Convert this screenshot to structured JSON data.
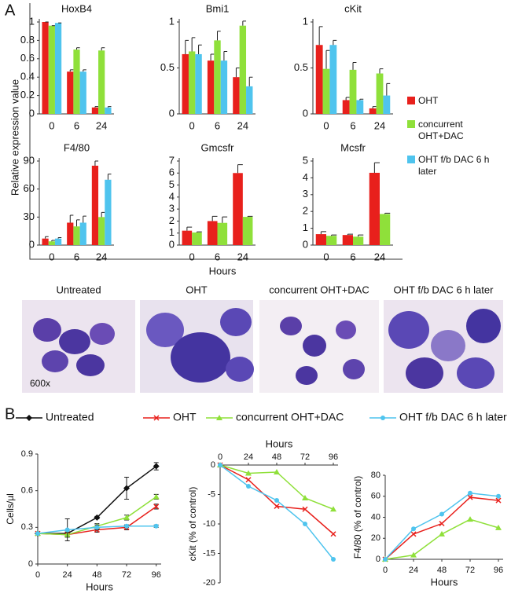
{
  "panel_a": {
    "label": "A",
    "y_label": "Relative expression value",
    "x_label": "Hours"
  },
  "micrographs": {
    "labels": [
      "Untreated",
      "OHT",
      "concurrent OHT+DAC",
      "OHT f/b DAC 6 h later"
    ],
    "magnification": "600x"
  },
  "panel_b": {
    "label": "B"
  },
  "chart_data": [
    {
      "type": "bar",
      "title": "HoxB4",
      "categories": [
        "0",
        "6",
        "24"
      ],
      "ylim": [
        0,
        1
      ],
      "yticks": [
        0,
        0.2,
        0.4,
        0.6,
        0.8,
        1
      ],
      "series": [
        {
          "name": "OHT",
          "color": "#e8201c",
          "values": [
            1.0,
            0.46,
            0.07
          ],
          "errors": [
            0,
            0.02,
            0.01
          ]
        },
        {
          "name": "concurrent OHT+DAC",
          "color": "#8fe03a",
          "values": [
            0.96,
            0.7,
            0.69
          ],
          "errors": [
            0,
            0.02,
            0.03
          ]
        },
        {
          "name": "OHT f/b DAC 6 h later",
          "color": "#4fc4ee",
          "values": [
            0.99,
            0.46,
            0.07
          ],
          "errors": [
            0,
            0.02,
            0.01
          ]
        }
      ]
    },
    {
      "type": "bar",
      "title": "Bmi1",
      "categories": [
        "0",
        "6",
        "24"
      ],
      "ylim": [
        0,
        1
      ],
      "yticks": [
        0,
        0.5,
        1
      ],
      "series": [
        {
          "color": "#e8201c",
          "values": [
            0.65,
            0.58,
            0.4
          ],
          "errors": [
            0.15,
            0.07,
            0.1
          ]
        },
        {
          "color": "#8fe03a",
          "values": [
            0.68,
            0.8,
            0.96
          ],
          "errors": [
            0.15,
            0.1,
            0.05
          ]
        },
        {
          "color": "#4fc4ee",
          "values": [
            0.65,
            0.58,
            0.3
          ],
          "errors": [
            0.1,
            0.1,
            0.1
          ]
        }
      ]
    },
    {
      "type": "bar",
      "title": "cKit",
      "categories": [
        "0",
        "6",
        "24"
      ],
      "ylim": [
        0,
        1
      ],
      "yticks": [
        0,
        0.5,
        1
      ],
      "series": [
        {
          "color": "#e8201c",
          "values": [
            0.75,
            0.15,
            0.06
          ],
          "errors": [
            0.2,
            0.03,
            0.02
          ]
        },
        {
          "color": "#8fe03a",
          "values": [
            0.49,
            0.48,
            0.44
          ],
          "errors": [
            0.2,
            0.08,
            0.05
          ]
        },
        {
          "color": "#4fc4ee",
          "values": [
            0.75,
            0.15,
            0.2
          ],
          "errors": [
            0.05,
            0.01,
            0.13
          ]
        }
      ]
    },
    {
      "type": "bar",
      "title": "F4/80",
      "categories": [
        "0",
        "6",
        "24"
      ],
      "ylim": [
        0,
        90
      ],
      "yticks": [
        0,
        30,
        60,
        90
      ],
      "series": [
        {
          "color": "#e8201c",
          "values": [
            7,
            24,
            85
          ],
          "errors": [
            2,
            8,
            5
          ]
        },
        {
          "color": "#8fe03a",
          "values": [
            4,
            20,
            30
          ],
          "errors": [
            1,
            7,
            5
          ]
        },
        {
          "color": "#4fc4ee",
          "values": [
            7,
            24,
            70
          ],
          "errors": [
            1,
            7,
            6
          ]
        }
      ]
    },
    {
      "type": "bar",
      "title": "Gmcsfr",
      "categories": [
        "0",
        "6",
        "24"
      ],
      "ylim": [
        0,
        7
      ],
      "yticks": [
        0,
        1,
        2,
        3,
        4,
        5,
        6,
        7
      ],
      "series": [
        {
          "color": "#e8201c",
          "values": [
            1.2,
            2.0,
            6.0
          ],
          "errors": [
            0.3,
            0.4,
            0.7
          ]
        },
        {
          "color": "#8fe03a",
          "values": [
            1.05,
            1.85,
            2.35
          ],
          "errors": [
            0.05,
            0.5,
            0.05
          ]
        }
      ]
    },
    {
      "type": "bar",
      "title": "Mcsfr",
      "categories": [
        "0",
        "6",
        "24"
      ],
      "ylim": [
        0,
        5
      ],
      "yticks": [
        0,
        1,
        2,
        3,
        4,
        5
      ],
      "series": [
        {
          "color": "#e8201c",
          "values": [
            0.65,
            0.6,
            4.3
          ],
          "errors": [
            0.15,
            0.05,
            0.6
          ]
        },
        {
          "color": "#8fe03a",
          "values": [
            0.55,
            0.5,
            1.85
          ],
          "errors": [
            0.05,
            0.1,
            0.05
          ]
        }
      ]
    },
    {
      "type": "line",
      "x_label": "Hours",
      "y_label": "Cells/µl",
      "x_axis_position": "bottom",
      "x": [
        0,
        24,
        48,
        72,
        96
      ],
      "xlim": [
        0,
        100
      ],
      "xticks": [
        0,
        24,
        48,
        72,
        96
      ],
      "ylim": [
        0,
        0.9
      ],
      "yticks": [
        0,
        0.3,
        0.6,
        0.9
      ],
      "series": [
        {
          "name": "Untreated",
          "color": "#111111",
          "marker": "diamond",
          "values": [
            0.25,
            0.25,
            0.38,
            0.62,
            0.8
          ],
          "errors": [
            0,
            0.02,
            0.01,
            0.09,
            0.03
          ]
        },
        {
          "name": "OHT",
          "color": "#e8201c",
          "marker": "x",
          "values": [
            0.25,
            0.24,
            0.28,
            0.3,
            0.47
          ],
          "errors": [
            0,
            0.02,
            0.02,
            0.02,
            0.02
          ]
        },
        {
          "name": "concurrent OHT+DAC",
          "color": "#8fe03a",
          "marker": "triangle",
          "values": [
            0.25,
            0.24,
            0.31,
            0.38,
            0.55
          ],
          "errors": [
            0,
            0.02,
            0.02,
            0.02,
            0.02
          ]
        },
        {
          "name": "OHT f/b DAC 6 h later",
          "color": "#4fc4ee",
          "marker": "circle",
          "values": [
            0.25,
            0.28,
            0.3,
            0.31,
            0.31
          ],
          "errors": [
            0,
            0.09,
            0.02,
            0.01,
            0.01
          ]
        }
      ]
    },
    {
      "type": "line",
      "x_label": "Hours",
      "y_label": "cKit (% of control)",
      "x_axis_position": "top",
      "x": [
        0,
        24,
        48,
        72,
        96
      ],
      "xlim": [
        0,
        100
      ],
      "xticks": [
        0,
        24,
        48,
        72,
        96
      ],
      "ylim": [
        -20,
        0
      ],
      "yticks": [
        0,
        -5,
        -10,
        -15,
        -20
      ],
      "series": [
        {
          "color": "#e8201c",
          "marker": "x",
          "values": [
            0,
            -2.5,
            -7,
            -7.5,
            -11.7
          ]
        },
        {
          "color": "#8fe03a",
          "marker": "triangle",
          "values": [
            0,
            -1.4,
            -1.2,
            -5.6,
            -7.5
          ]
        },
        {
          "color": "#4fc4ee",
          "marker": "circle",
          "values": [
            0,
            -3.6,
            -6,
            -10,
            -16
          ]
        }
      ]
    },
    {
      "type": "line",
      "x_label": "Hours",
      "y_label": "F4/80 (% of control)",
      "x_axis_position": "bottom",
      "x": [
        0,
        24,
        48,
        72,
        96
      ],
      "xlim": [
        0,
        100
      ],
      "xticks": [
        0,
        24,
        48,
        72,
        96
      ],
      "ylim": [
        0,
        80
      ],
      "yticks": [
        0,
        20,
        40,
        60,
        80
      ],
      "series": [
        {
          "color": "#e8201c",
          "marker": "x",
          "values": [
            0,
            24,
            34,
            59,
            56
          ]
        },
        {
          "color": "#8fe03a",
          "marker": "triangle",
          "values": [
            0,
            4,
            24,
            38,
            30
          ]
        },
        {
          "color": "#4fc4ee",
          "marker": "circle",
          "values": [
            0,
            29,
            43,
            63,
            60
          ]
        }
      ]
    }
  ]
}
